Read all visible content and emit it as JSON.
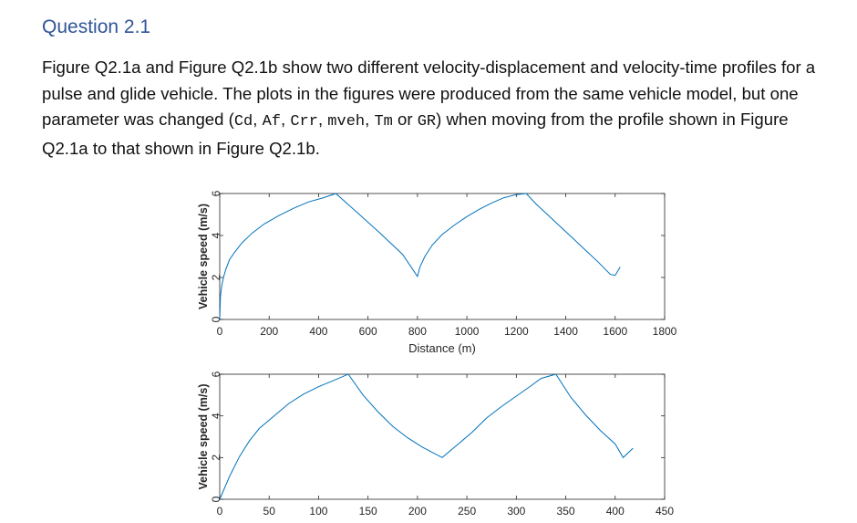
{
  "question": {
    "title": "Question 2.1",
    "text_1": "Figure Q2.1a and Figure Q2.1b show two different velocity-displacement and velocity-time profiles for a pulse and glide vehicle. The plots in the figures were produced from the same vehicle model, but one parameter was changed (",
    "params": [
      "Cd",
      "Af",
      "Crr",
      "mveh",
      "Tm",
      "GR"
    ],
    "sep": ", ",
    "or_word": " or ",
    "text_2": ") when moving from the profile shown in Figure Q2.1a to that shown in Figure Q2.1b."
  },
  "chart_data": [
    {
      "type": "line",
      "title": "",
      "xlabel": "Distance (m)",
      "ylabel": "Vehicle speed (m/s)",
      "xlim": [
        0,
        1800
      ],
      "ylim": [
        0,
        6
      ],
      "xticks": [
        "0",
        "200",
        "400",
        "600",
        "800",
        "1000",
        "1200",
        "1400",
        "1600",
        "1800"
      ],
      "yticks": [
        "0",
        "2",
        "4",
        "6"
      ],
      "grid": false,
      "color": "#0072bd",
      "series": [
        {
          "x": [
            0,
            3,
            8,
            15,
            25,
            40,
            60,
            90,
            130,
            180,
            240,
            300,
            360,
            420,
            470,
            560,
            650,
            740,
            800,
            810,
            830,
            860,
            900,
            950,
            1000,
            1050,
            1100,
            1150,
            1200,
            1240,
            1280,
            1330,
            1380,
            1430,
            1480,
            1530,
            1580,
            1600,
            1620
          ],
          "y": [
            0,
            1.1,
            1.6,
            2.0,
            2.4,
            2.85,
            3.2,
            3.65,
            4.1,
            4.55,
            4.95,
            5.3,
            5.6,
            5.8,
            6.0,
            5.05,
            4.1,
            3.1,
            2.05,
            2.5,
            3.0,
            3.55,
            4.05,
            4.5,
            4.9,
            5.25,
            5.55,
            5.8,
            5.95,
            6.0,
            5.5,
            4.95,
            4.4,
            3.85,
            3.3,
            2.75,
            2.15,
            2.1,
            2.5
          ]
        }
      ]
    },
    {
      "type": "line",
      "title": "",
      "xlabel": "",
      "ylabel": "Vehicle speed (m/s)",
      "xlim": [
        0,
        450
      ],
      "ylim": [
        0,
        6
      ],
      "xticks": [
        "0",
        "50",
        "100",
        "150",
        "200",
        "250",
        "300",
        "350",
        "400",
        "450"
      ],
      "yticks": [
        "0",
        "2",
        "4",
        "6"
      ],
      "grid": false,
      "color": "#0072bd",
      "series": [
        {
          "x": [
            0,
            10,
            20,
            30,
            40,
            55,
            70,
            85,
            100,
            115,
            130,
            145,
            160,
            175,
            190,
            205,
            225,
            240,
            255,
            270,
            285,
            300,
            315,
            325,
            340,
            355,
            370,
            385,
            400,
            408,
            418
          ],
          "y": [
            0,
            1.1,
            2.05,
            2.8,
            3.4,
            4.0,
            4.6,
            5.05,
            5.4,
            5.7,
            6.0,
            5.0,
            4.2,
            3.5,
            2.95,
            2.5,
            2.0,
            2.6,
            3.2,
            3.9,
            4.45,
            4.95,
            5.45,
            5.8,
            6.0,
            4.9,
            4.05,
            3.3,
            2.65,
            2.0,
            2.45
          ]
        }
      ]
    }
  ]
}
